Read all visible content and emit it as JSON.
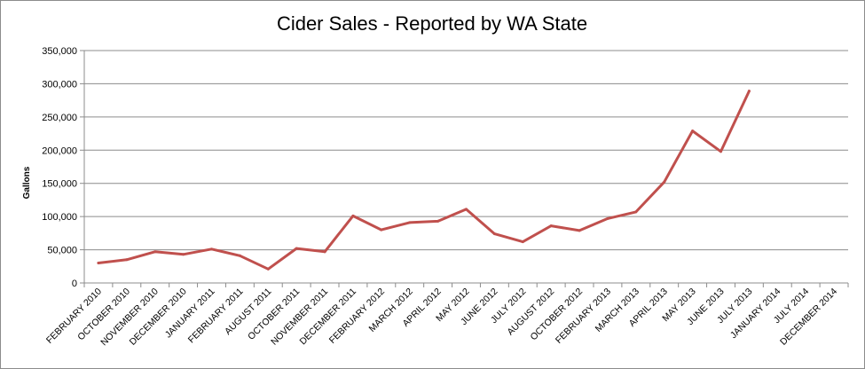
{
  "chart_data": {
    "type": "line",
    "title": "Cider Sales - Reported by WA State",
    "ylabel": "Gallons",
    "xlabel": "",
    "ylim": [
      0,
      350000
    ],
    "yticks": [
      "0",
      "50,000",
      "100,000",
      "150,000",
      "200,000",
      "250,000",
      "300,000",
      "350,000"
    ],
    "ytick_values": [
      0,
      50000,
      100000,
      150000,
      200000,
      250000,
      300000,
      350000
    ],
    "grid": true,
    "legend": "none",
    "line_color": "#c0504d",
    "categories": [
      "FEBRUARY 2010",
      "OCTOBER 2010",
      "NOVEMBER 2010",
      "DECEMBER 2010",
      "JANUARY 2011",
      "FEBRUARY 2011",
      "AUGUST 2011",
      "OCTOBER 2011",
      "NOVEMBER 2011",
      "DECEMBER 2011",
      "FEBRUARY 2012",
      "MARCH 2012",
      "APRIL 2012",
      "MAY 2012",
      "JUNE 2012",
      "JULY 2012",
      "AUGUST 2012",
      "OCTOBER 2012",
      "FEBRUARY 2013",
      "MARCH 2013",
      "APRIL 2013",
      "MAY 2013",
      "JUNE 2013",
      "JULY 2013",
      "JANUARY 2014",
      "JULY 2014",
      "DECEMBER 2014"
    ],
    "values": [
      30000,
      35000,
      47000,
      43000,
      51000,
      41000,
      21000,
      52000,
      47000,
      101000,
      80000,
      91000,
      93000,
      111000,
      74000,
      62000,
      86000,
      79000,
      97000,
      107000,
      152000,
      229000,
      198000,
      289000,
      null,
      null,
      null
    ]
  }
}
